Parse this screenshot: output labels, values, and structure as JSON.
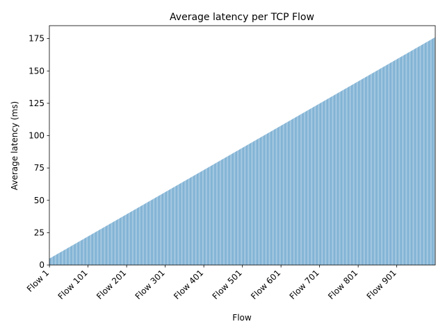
{
  "chart_data": {
    "type": "bar",
    "title": "Average latency per TCP Flow",
    "xlabel": "Flow",
    "ylabel": "Average latency (ms)",
    "category_prefix": "Flow ",
    "category_start": 1,
    "category_count": 1000,
    "category_step": 1,
    "bar_value_start": 5,
    "bar_value_end": 176,
    "bar_color": "#1f77b4",
    "ylim": [
      0,
      185
    ],
    "y_ticks": [
      0,
      25,
      50,
      75,
      100,
      125,
      150,
      175
    ],
    "x_tick_labels": [
      "Flow 1",
      "Flow 101",
      "Flow 201",
      "Flow 301",
      "Flow 401",
      "Flow 501",
      "Flow 601",
      "Flow 701",
      "Flow 801",
      "Flow 901"
    ],
    "grid": false,
    "legend": "none"
  }
}
